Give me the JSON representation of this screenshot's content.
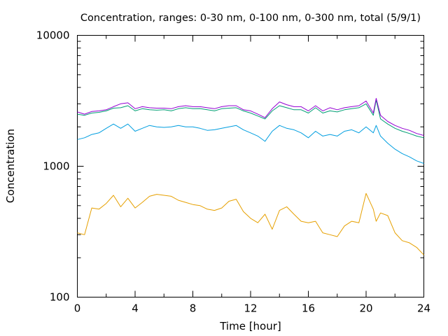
{
  "chart_data": {
    "type": "line",
    "title": "Concentration, ranges: 0-30 nm, 0-100 nm, 0-300 nm, total (5/9/1)",
    "xlabel": "Time [hour]",
    "ylabel": "Concentration",
    "xlim": [
      0,
      24
    ],
    "ylim": [
      100,
      10000
    ],
    "yscale": "log",
    "grid": false,
    "legend": "none",
    "x_ticks": [
      "0",
      "4",
      "8",
      "12",
      "16",
      "20",
      "24"
    ],
    "y_ticks": [
      "100",
      "1000",
      "10000"
    ],
    "x": [
      0,
      0.5,
      1,
      1.5,
      2,
      2.5,
      3,
      3.5,
      4,
      4.5,
      5,
      5.5,
      6,
      6.5,
      7,
      7.5,
      8,
      8.5,
      9,
      9.5,
      10,
      10.5,
      11,
      11.5,
      12,
      12.5,
      13,
      13.5,
      14,
      14.5,
      15,
      15.5,
      16,
      16.5,
      17,
      17.5,
      18,
      18.5,
      19,
      19.5,
      20,
      20.5,
      20.7,
      21,
      21.5,
      22,
      22.5,
      23,
      23.5,
      24
    ],
    "series": [
      {
        "color": "#e6a000",
        "values": [
          310,
          300,
          480,
          470,
          520,
          600,
          490,
          570,
          480,
          530,
          590,
          610,
          600,
          590,
          550,
          530,
          510,
          500,
          470,
          460,
          480,
          540,
          560,
          450,
          400,
          370,
          430,
          330,
          460,
          490,
          430,
          380,
          370,
          380,
          310,
          300,
          290,
          350,
          380,
          370,
          620,
          470,
          380,
          440,
          420,
          310,
          270,
          260,
          240,
          210
        ]
      },
      {
        "color": "#009ee0",
        "values": [
          1600,
          1650,
          1750,
          1800,
          1950,
          2100,
          1950,
          2100,
          1850,
          1950,
          2050,
          2000,
          1980,
          2000,
          2050,
          2000,
          2000,
          1950,
          1880,
          1900,
          1950,
          2000,
          2050,
          1900,
          1800,
          1700,
          1550,
          1850,
          2050,
          1950,
          1900,
          1800,
          1650,
          1850,
          1700,
          1750,
          1700,
          1850,
          1900,
          1800,
          2000,
          1800,
          2050,
          1700,
          1500,
          1350,
          1250,
          1180,
          1100,
          1050
        ]
      },
      {
        "color": "#009e73",
        "values": [
          2500,
          2450,
          2550,
          2580,
          2650,
          2780,
          2800,
          2900,
          2650,
          2750,
          2700,
          2680,
          2700,
          2650,
          2750,
          2800,
          2750,
          2760,
          2700,
          2650,
          2750,
          2780,
          2800,
          2650,
          2550,
          2420,
          2300,
          2650,
          2900,
          2800,
          2700,
          2700,
          2550,
          2800,
          2550,
          2650,
          2600,
          2700,
          2750,
          2800,
          3000,
          2450,
          3200,
          2300,
          2100,
          1950,
          1850,
          1780,
          1700,
          1650
        ]
      },
      {
        "color": "#9400d3",
        "values": [
          2600,
          2500,
          2620,
          2650,
          2700,
          2850,
          3000,
          3050,
          2750,
          2850,
          2800,
          2780,
          2780,
          2750,
          2850,
          2900,
          2850,
          2850,
          2800,
          2750,
          2850,
          2900,
          2900,
          2700,
          2650,
          2500,
          2350,
          2750,
          3100,
          2950,
          2850,
          2850,
          2650,
          2900,
          2650,
          2800,
          2700,
          2800,
          2850,
          2900,
          3150,
          2550,
          3300,
          2450,
          2200,
          2050,
          1950,
          1880,
          1780,
          1720
        ]
      }
    ]
  }
}
